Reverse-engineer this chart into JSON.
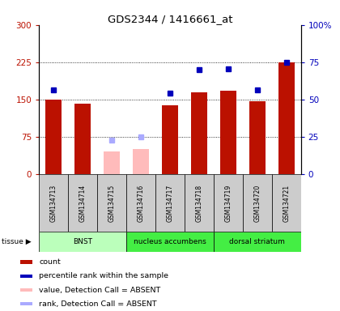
{
  "title": "GDS2344 / 1416661_at",
  "samples": [
    "GSM134713",
    "GSM134714",
    "GSM134715",
    "GSM134716",
    "GSM134717",
    "GSM134718",
    "GSM134719",
    "GSM134720",
    "GSM134721"
  ],
  "count_present": [
    150,
    142,
    null,
    null,
    138,
    165,
    168,
    147,
    225
  ],
  "count_absent": [
    null,
    null,
    45,
    50,
    null,
    null,
    null,
    null,
    null
  ],
  "rank_present": [
    170,
    null,
    null,
    null,
    163,
    210,
    212,
    170,
    225
  ],
  "rank_absent": [
    null,
    null,
    68,
    75,
    null,
    null,
    null,
    null,
    null
  ],
  "ylim": [
    0,
    300
  ],
  "yticks": [
    0,
    75,
    150,
    225,
    300
  ],
  "ytick_labels_left": [
    "0",
    "75",
    "150",
    "225",
    "300"
  ],
  "ytick_labels_right": [
    "0",
    "25",
    "50",
    "75",
    "100%"
  ],
  "gridlines": [
    75,
    150,
    225
  ],
  "tissue_groups": [
    {
      "label": "BNST",
      "start": 0,
      "end": 2,
      "color": "#bbffbb"
    },
    {
      "label": "nucleus accumbens",
      "start": 3,
      "end": 5,
      "color": "#44ee44"
    },
    {
      "label": "dorsal striatum",
      "start": 6,
      "end": 8,
      "color": "#44ee44"
    }
  ],
  "bar_color_present": "#bb1100",
  "bar_color_absent": "#ffbbbb",
  "dot_color_present": "#0000bb",
  "dot_color_absent": "#aaaaff",
  "bar_width": 0.55,
  "legend_items": [
    {
      "label": "count",
      "color": "#bb1100"
    },
    {
      "label": "percentile rank within the sample",
      "color": "#0000bb"
    },
    {
      "label": "value, Detection Call = ABSENT",
      "color": "#ffbbbb"
    },
    {
      "label": "rank, Detection Call = ABSENT",
      "color": "#aaaaff"
    }
  ]
}
